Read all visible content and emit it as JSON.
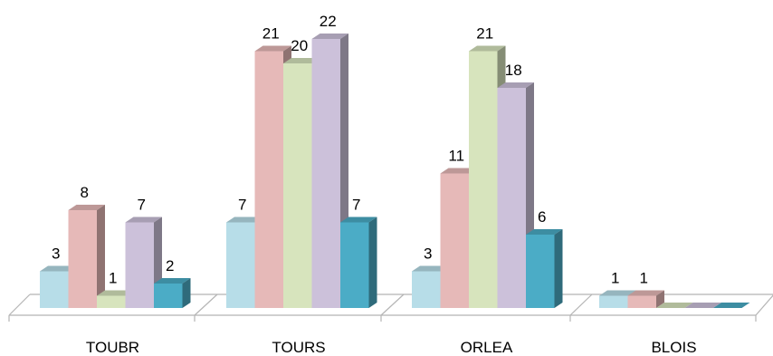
{
  "chart_data": {
    "type": "bar",
    "categories": [
      "TOUBR",
      "TOURS",
      "ORLEA",
      "BLOIS"
    ],
    "series": [
      {
        "values": [
          3,
          7,
          3,
          1
        ],
        "color": "#b7dde8"
      },
      {
        "values": [
          8,
          21,
          11,
          1
        ],
        "color": "#e6b9b8"
      },
      {
        "values": [
          1,
          20,
          21,
          0
        ],
        "color": "#d7e4bd"
      },
      {
        "values": [
          7,
          22,
          18,
          0
        ],
        "color": "#ccc1da"
      },
      {
        "values": [
          2,
          7,
          6,
          0
        ],
        "color": "#4bacc6"
      }
    ],
    "data_labels": [
      [
        "3",
        "8",
        "1",
        "7",
        "2"
      ],
      [
        "7",
        "21",
        "20",
        "22",
        "7"
      ],
      [
        "3",
        "11",
        "21",
        "18",
        "6"
      ],
      [
        "1",
        "1",
        "",
        "",
        ""
      ]
    ],
    "title": "",
    "xlabel": "",
    "ylabel": "",
    "ylim": [
      0,
      22
    ],
    "style": "3d-clustered-column",
    "grid": false,
    "legend": "none"
  }
}
